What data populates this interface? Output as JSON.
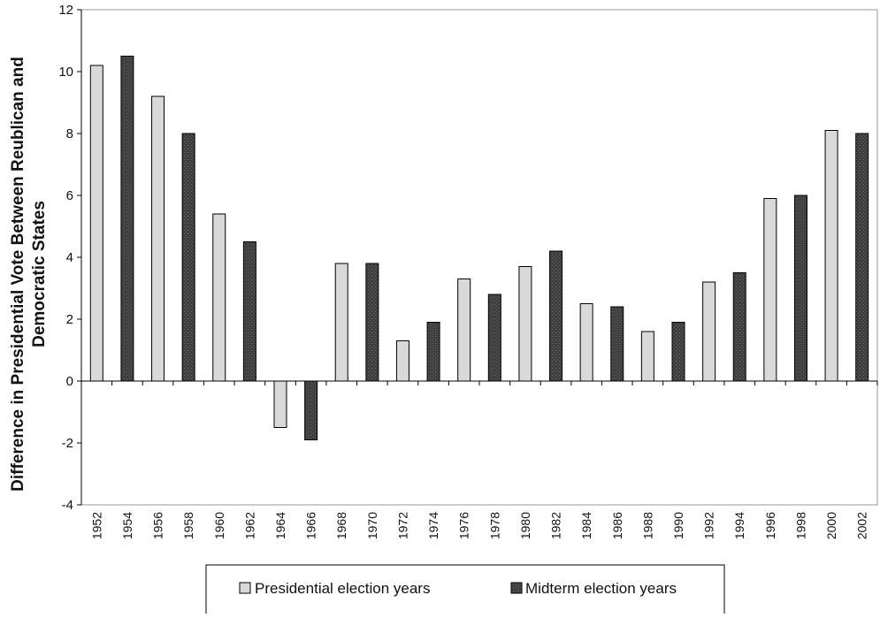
{
  "chart_data": {
    "type": "bar",
    "title": "",
    "xlabel": "",
    "ylabel_lines": [
      "Difference in Presidential Vote Between Reublican and",
      "Democratic States"
    ],
    "ylim": [
      -4,
      12
    ],
    "yticks": [
      -4,
      -2,
      0,
      2,
      4,
      6,
      8,
      10,
      12
    ],
    "grid": false,
    "legend_position": "bottom",
    "categories": [
      "1952",
      "1954",
      "1956",
      "1958",
      "1960",
      "1962",
      "1964",
      "1966",
      "1968",
      "1970",
      "1972",
      "1974",
      "1976",
      "1978",
      "1980",
      "1982",
      "1984",
      "1986",
      "1988",
      "1990",
      "1992",
      "1994",
      "1996",
      "1998",
      "2000",
      "2002"
    ],
    "values": [
      10.2,
      10.5,
      9.2,
      8.0,
      5.4,
      4.5,
      -1.5,
      -1.9,
      3.8,
      3.8,
      1.3,
      1.9,
      3.3,
      2.8,
      3.7,
      4.2,
      2.5,
      2.4,
      1.6,
      1.9,
      3.2,
      3.5,
      5.9,
      6.0,
      8.1,
      8.0
    ],
    "series_of_point": [
      "presidential",
      "midterm",
      "presidential",
      "midterm",
      "presidential",
      "midterm",
      "presidential",
      "midterm",
      "presidential",
      "midterm",
      "presidential",
      "midterm",
      "presidential",
      "midterm",
      "presidential",
      "midterm",
      "presidential",
      "midterm",
      "presidential",
      "midterm",
      "presidential",
      "midterm",
      "presidential",
      "midterm",
      "presidential",
      "midterm"
    ],
    "series": [
      {
        "key": "presidential",
        "name": "Presidential election years",
        "color": "#d9d9d9"
      },
      {
        "key": "midterm",
        "name": "Midterm election years",
        "color": "#404040"
      }
    ]
  }
}
